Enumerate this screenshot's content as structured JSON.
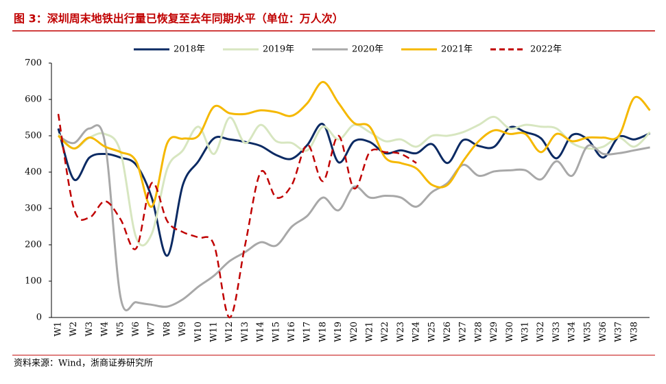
{
  "chart_data": {
    "type": "line",
    "title": "图 3：深圳周末地铁出行量已恢复至去年同期水平（单位：万人次）",
    "source": "资料来源：Wind，浙商证券研究所",
    "categories": [
      "W1",
      "W2",
      "W3",
      "W4",
      "W5",
      "W6",
      "W7",
      "W8",
      "W9",
      "W10",
      "W11",
      "W12",
      "W13",
      "W14",
      "W15",
      "W16",
      "W17",
      "W18",
      "W19",
      "W20",
      "W21",
      "W22",
      "W23",
      "W24",
      "W25",
      "W26",
      "W27",
      "W28",
      "W29",
      "W30",
      "W31",
      "W32",
      "W33",
      "W34",
      "W35",
      "W36",
      "W37",
      "W38",
      null
    ],
    "ylim": [
      0,
      700
    ],
    "yticks": [
      0,
      100,
      200,
      300,
      400,
      500,
      600,
      700
    ],
    "grid": false,
    "legend": "top",
    "series": [
      {
        "name": "2018年",
        "color": "#0b2a63",
        "dashed": false,
        "values": [
          520,
          380,
          440,
          450,
          440,
          420,
          330,
          170,
          365,
          430,
          493,
          490,
          483,
          472,
          447,
          437,
          475,
          532,
          427,
          485,
          483,
          452,
          460,
          452,
          477,
          425,
          488,
          472,
          470,
          523,
          510,
          493,
          438,
          502,
          490,
          440,
          497,
          490,
          507
        ]
      },
      {
        "name": "2019年",
        "color": "#d7e6c0",
        "dashed": false,
        "values": [
          505,
          465,
          495,
          505,
          455,
          220,
          230,
          410,
          460,
          525,
          450,
          550,
          480,
          530,
          485,
          480,
          460,
          525,
          490,
          530,
          510,
          485,
          490,
          470,
          500,
          500,
          510,
          530,
          552,
          520,
          530,
          525,
          520,
          480,
          465,
          470,
          495,
          470,
          510
        ]
      },
      {
        "name": "2020年",
        "color": "#a8a8a8",
        "dashed": false,
        "values": [
          500,
          480,
          520,
          480,
          55,
          42,
          35,
          30,
          50,
          85,
          115,
          155,
          180,
          207,
          198,
          250,
          280,
          330,
          295,
          360,
          330,
          335,
          330,
          305,
          345,
          370,
          420,
          390,
          402,
          405,
          405,
          380,
          430,
          390,
          472,
          450,
          452,
          460,
          468
        ]
      },
      {
        "name": "2021年",
        "color": "#f5b800",
        "dashed": false,
        "values": [
          500,
          465,
          495,
          470,
          455,
          430,
          305,
          480,
          492,
          500,
          580,
          562,
          560,
          570,
          565,
          555,
          590,
          648,
          590,
          535,
          525,
          440,
          425,
          410,
          365,
          365,
          430,
          485,
          515,
          505,
          505,
          455,
          505,
          485,
          495,
          495,
          500,
          605,
          570
        ]
      },
      {
        "name": "2022年",
        "color": "#c00000",
        "dashed": true,
        "values": [
          560,
          300,
          275,
          320,
          270,
          190,
          370,
          265,
          235,
          220,
          200,
          0,
          200,
          400,
          330,
          365,
          475,
          375,
          500,
          355,
          455,
          455,
          450,
          425,
          null,
          null,
          null,
          null,
          null,
          null,
          null,
          null,
          null,
          null,
          null,
          null,
          null,
          null,
          null
        ]
      }
    ]
  }
}
